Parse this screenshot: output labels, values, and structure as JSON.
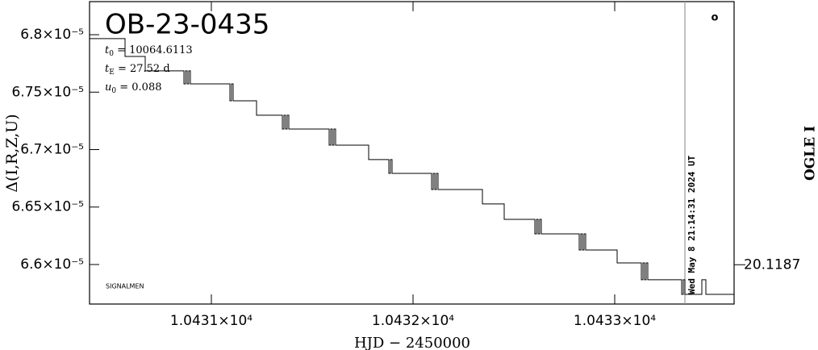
{
  "chart_data": {
    "type": "line",
    "step": true,
    "color": "#000000",
    "title": "OB-23-0435",
    "parameters": [
      {
        "symbol": "t",
        "subscript": "0",
        "text": " = 10064.6113"
      },
      {
        "symbol": "t",
        "subscript": "E",
        "text": " = 27.52 d"
      },
      {
        "symbol": "u",
        "subscript": "0",
        "text": " = 0.088"
      }
    ],
    "source": "SIGNALMEN",
    "timestamp": "Wed May  8 21:14:31 2024 UT",
    "timestamp_x": 10433.348,
    "marker_label": "o",
    "x_label": "HJD − 2450000",
    "y_label": "Δ(I,R,Z,U)",
    "y2_label": "OGLE I",
    "xlim": [
      10430.396,
      10433.592
    ],
    "ylim": [
      6.5656e-05,
      6.8288e-05
    ],
    "y2lim": [
      20.12,
      20.11
    ],
    "xticks": [
      {
        "value": 10431,
        "label": "1.0431×10⁴"
      },
      {
        "value": 10432,
        "label": "1.0432×10⁴"
      },
      {
        "value": 10433,
        "label": "1.0433×10⁴"
      }
    ],
    "yticks": [
      {
        "value": 6.6e-05,
        "label": "6.6×10⁻⁵"
      },
      {
        "value": 6.65e-05,
        "label": "6.65×10⁻⁵"
      },
      {
        "value": 6.7e-05,
        "label": "6.7×10⁻⁵"
      },
      {
        "value": 6.75e-05,
        "label": "6.75×10⁻⁵"
      },
      {
        "value": 6.8e-05,
        "label": "6.8×10⁻⁵"
      }
    ],
    "y2ticks": [
      20.1187
    ],
    "x": [
      10430.396,
      10430.572,
      10430.672,
      10430.864,
      10430.872,
      10430.88,
      10430.888,
      10430.896,
      10431.092,
      10431.1,
      10431.108,
      10431.224,
      10431.352,
      10431.36,
      10431.368,
      10431.376,
      10431.384,
      10431.584,
      10431.592,
      10431.6,
      10431.608,
      10431.616,
      10431.78,
      10431.88,
      10431.888,
      10431.896,
      10432.092,
      10432.1,
      10432.108,
      10432.116,
      10432.124,
      10432.344,
      10432.452,
      10432.604,
      10432.612,
      10432.62,
      10432.628,
      10432.636,
      10432.824,
      10432.832,
      10432.84,
      10432.848,
      10432.856,
      10433.012,
      10433.132,
      10433.14,
      10433.148,
      10433.156,
      10433.164,
      10433.332,
      10433.34,
      10433.348,
      10433.432,
      10433.452,
      10433.59
    ],
    "values": [
      6.7966e-05,
      6.7811e-05,
      6.7685e-05,
      6.7572e-05,
      6.7685e-05,
      6.7572e-05,
      6.7685e-05,
      6.7572e-05,
      6.7425e-05,
      6.7572e-05,
      6.7425e-05,
      6.7299e-05,
      6.7179e-05,
      6.7299e-05,
      6.7179e-05,
      6.7299e-05,
      6.7179e-05,
      6.7039e-05,
      6.7179e-05,
      6.7039e-05,
      6.7179e-05,
      6.7039e-05,
      6.6913e-05,
      6.6793e-05,
      6.6913e-05,
      6.6793e-05,
      6.6653e-05,
      6.6793e-05,
      6.6653e-05,
      6.6793e-05,
      6.6653e-05,
      6.6527e-05,
      6.6393e-05,
      6.6267e-05,
      6.6393e-05,
      6.6267e-05,
      6.6393e-05,
      6.6267e-05,
      6.6126e-05,
      6.6267e-05,
      6.6126e-05,
      6.6267e-05,
      6.6126e-05,
      6.6014e-05,
      6.5867e-05,
      6.6014e-05,
      6.5867e-05,
      6.6014e-05,
      6.5867e-05,
      6.574e-05,
      6.5867e-05,
      6.574e-05,
      6.5867e-05,
      6.574e-05,
      6.574e-05
    ]
  }
}
